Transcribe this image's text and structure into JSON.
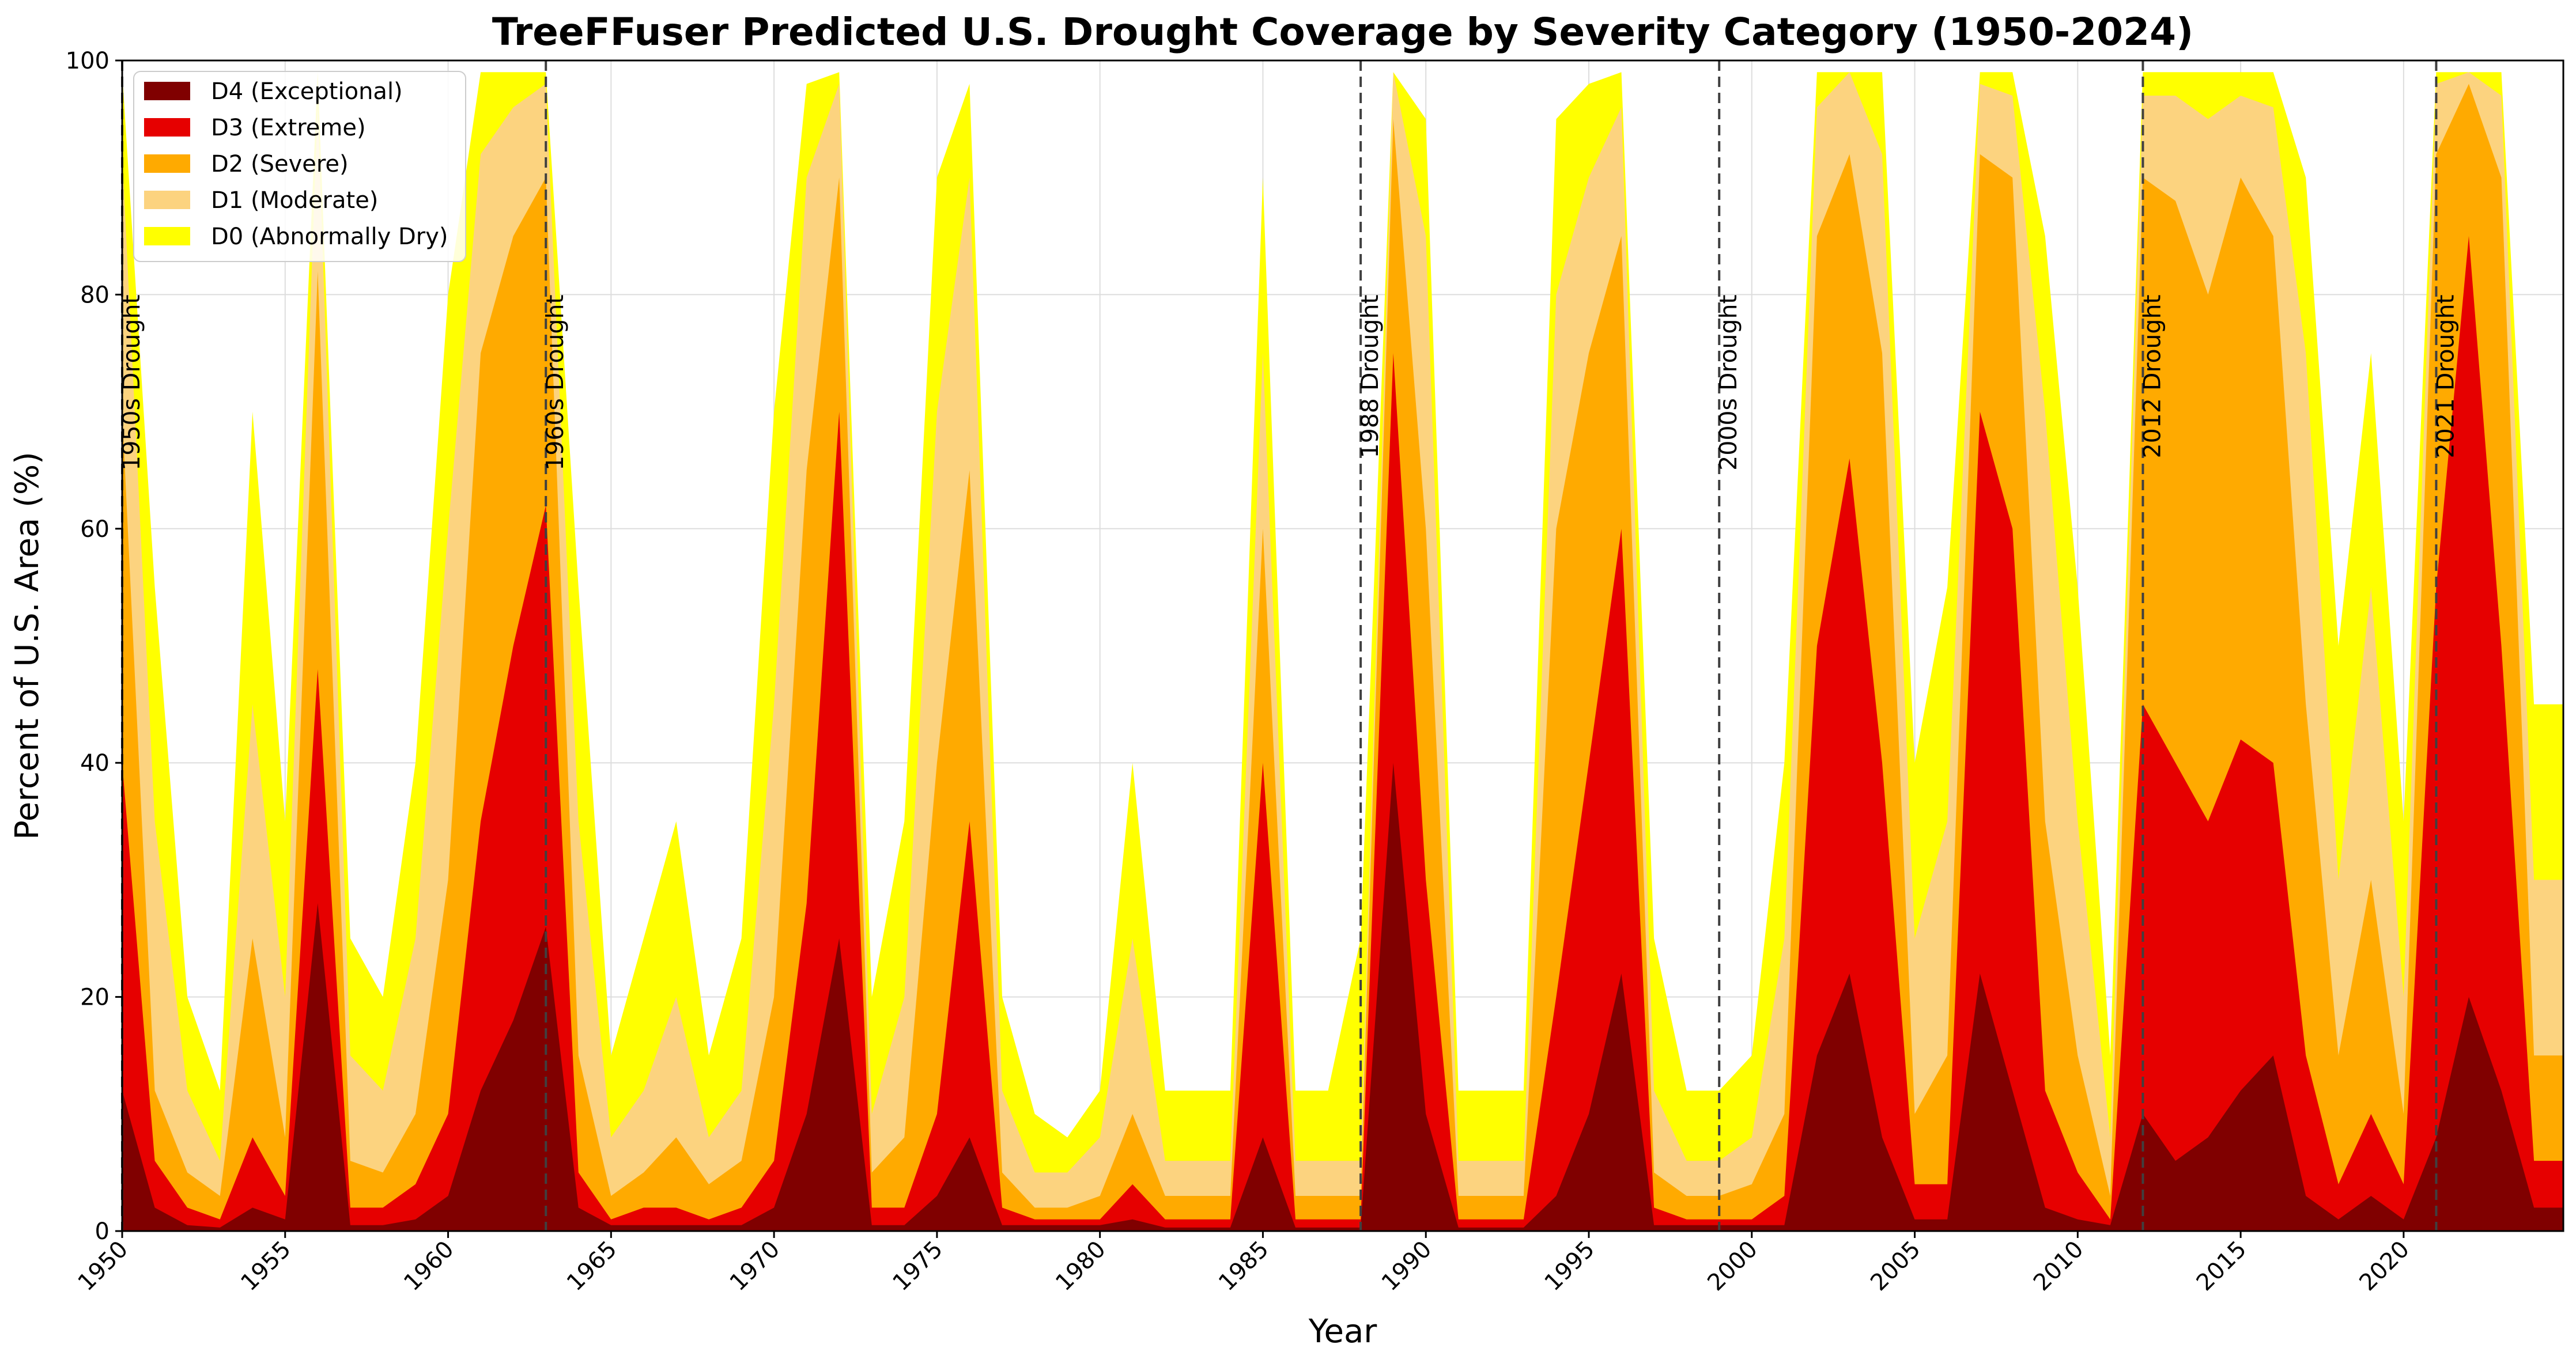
{
  "chart_data": {
    "type": "area",
    "stacked": true,
    "title": "TreeFFuser Predicted U.S. Drought Coverage by Severity Category (1950-2024)",
    "xlabel": "Year",
    "ylabel": "Percent of U.S. Area (%)",
    "xlim": [
      1950,
      2024.9
    ],
    "ylim": [
      0,
      100
    ],
    "grid": true,
    "legend_position": "top-left",
    "x_ticks": [
      1950,
      1955,
      1960,
      1965,
      1970,
      1975,
      1980,
      1985,
      1990,
      1995,
      2000,
      2005,
      2010,
      2015,
      2020
    ],
    "y_ticks": [
      0,
      20,
      40,
      60,
      80,
      100
    ],
    "events": [
      {
        "year": 1950,
        "label": "1950s Drought"
      },
      {
        "year": 1963,
        "label": "1960s Drought"
      },
      {
        "year": 1988,
        "label": "1988 Drought"
      },
      {
        "year": 1999,
        "label": "2000s Drought"
      },
      {
        "year": 2012,
        "label": "2012 Drought"
      },
      {
        "year": 2021,
        "label": "2021 Drought"
      }
    ],
    "series": [
      {
        "name": "D4 (Exceptional)",
        "color": "#800000",
        "key": "d4"
      },
      {
        "name": "D3 (Extreme)",
        "color": "#e60000",
        "key": "d3"
      },
      {
        "name": "D2 (Severe)",
        "color": "#ffaa00",
        "key": "d2"
      },
      {
        "name": "D1 (Moderate)",
        "color": "#fcd37f",
        "key": "d1"
      },
      {
        "name": "D0 (Abnormally Dry)",
        "color": "#ffff00",
        "key": "d0"
      }
    ],
    "sampling": "annual averages of the monthly predictions (estimated)",
    "x": [
      1950,
      1951,
      1952,
      1953,
      1954,
      1955,
      1956,
      1957,
      1958,
      1959,
      1960,
      1961,
      1962,
      1963,
      1964,
      1965,
      1966,
      1967,
      1968,
      1969,
      1970,
      1971,
      1972,
      1973,
      1974,
      1975,
      1976,
      1977,
      1978,
      1979,
      1980,
      1981,
      1982,
      1983,
      1984,
      1985,
      1986,
      1987,
      1988,
      1989,
      1990,
      1991,
      1992,
      1993,
      1994,
      1995,
      1996,
      1997,
      1998,
      1999,
      2000,
      2001,
      2002,
      2003,
      2004,
      2005,
      2006,
      2007,
      2008,
      2009,
      2010,
      2011,
      2012,
      2013,
      2014,
      2015,
      2016,
      2017,
      2018,
      2019,
      2020,
      2021,
      2022,
      2023,
      2024
    ],
    "cumulative": {
      "d4": [
        12,
        2,
        0.5,
        0.3,
        2,
        1,
        28,
        0.5,
        0.5,
        1,
        3,
        12,
        18,
        26,
        2,
        0.5,
        0.5,
        0.5,
        0.5,
        0.5,
        2,
        10,
        25,
        0.5,
        0.5,
        3,
        8,
        0.5,
        0.5,
        0.5,
        0.5,
        1,
        0.3,
        0.3,
        0.3,
        8,
        0.3,
        0.3,
        0.3,
        40,
        10,
        0.3,
        0.3,
        0.3,
        3,
        10,
        22,
        0.5,
        0.5,
        0.5,
        0.5,
        0.5,
        15,
        22,
        8,
        1,
        1,
        22,
        12,
        2,
        1,
        0.5,
        10,
        6,
        8,
        12,
        15,
        3,
        1,
        3,
        1,
        8,
        20,
        12,
        2
      ],
      "d3": [
        40,
        6,
        2,
        1,
        8,
        3,
        48,
        2,
        2,
        4,
        10,
        35,
        50,
        62,
        5,
        1,
        2,
        2,
        1,
        2,
        6,
        28,
        70,
        2,
        2,
        10,
        35,
        2,
        1,
        1,
        1,
        4,
        1,
        1,
        1,
        40,
        1,
        1,
        1,
        75,
        30,
        1,
        1,
        1,
        20,
        40,
        60,
        2,
        1,
        1,
        1,
        3,
        50,
        66,
        40,
        4,
        4,
        70,
        60,
        12,
        5,
        1,
        45,
        40,
        35,
        42,
        40,
        15,
        4,
        10,
        4,
        55,
        85,
        50,
        6
      ],
      "d2": [
        70,
        12,
        5,
        3,
        25,
        8,
        82,
        6,
        5,
        10,
        30,
        75,
        85,
        90,
        15,
        3,
        5,
        8,
        4,
        6,
        20,
        65,
        90,
        5,
        8,
        40,
        65,
        5,
        2,
        2,
        3,
        10,
        3,
        3,
        3,
        60,
        3,
        3,
        3,
        95,
        60,
        3,
        3,
        3,
        60,
        75,
        85,
        5,
        3,
        3,
        4,
        10,
        85,
        92,
        75,
        10,
        15,
        92,
        90,
        35,
        15,
        3,
        90,
        88,
        80,
        90,
        85,
        45,
        15,
        30,
        10,
        92,
        98,
        90,
        15
      ],
      "d1": [
        92,
        35,
        12,
        6,
        45,
        20,
        96,
        15,
        12,
        25,
        60,
        92,
        96,
        98,
        35,
        8,
        12,
        20,
        8,
        12,
        45,
        90,
        98,
        10,
        20,
        70,
        90,
        12,
        5,
        5,
        8,
        25,
        6,
        6,
        6,
        75,
        6,
        6,
        6,
        99,
        85,
        6,
        6,
        6,
        80,
        90,
        96,
        12,
        6,
        6,
        8,
        25,
        96,
        99,
        92,
        25,
        35,
        98,
        97,
        70,
        35,
        8,
        97,
        97,
        95,
        97,
        96,
        75,
        30,
        55,
        20,
        98,
        99,
        97,
        30
      ],
      "d0": [
        99,
        55,
        20,
        12,
        70,
        35,
        99,
        25,
        20,
        40,
        80,
        99,
        99,
        99,
        55,
        15,
        25,
        35,
        15,
        25,
        70,
        98,
        99,
        20,
        35,
        90,
        98,
        20,
        10,
        8,
        12,
        40,
        12,
        12,
        12,
        90,
        12,
        12,
        25,
        99,
        95,
        12,
        12,
        12,
        95,
        98,
        99,
        25,
        12,
        12,
        15,
        40,
        99,
        99,
        99,
        40,
        55,
        99,
        99,
        85,
        55,
        15,
        99,
        99,
        99,
        99,
        99,
        90,
        50,
        75,
        35,
        99,
        99,
        99,
        45
      ]
    }
  }
}
